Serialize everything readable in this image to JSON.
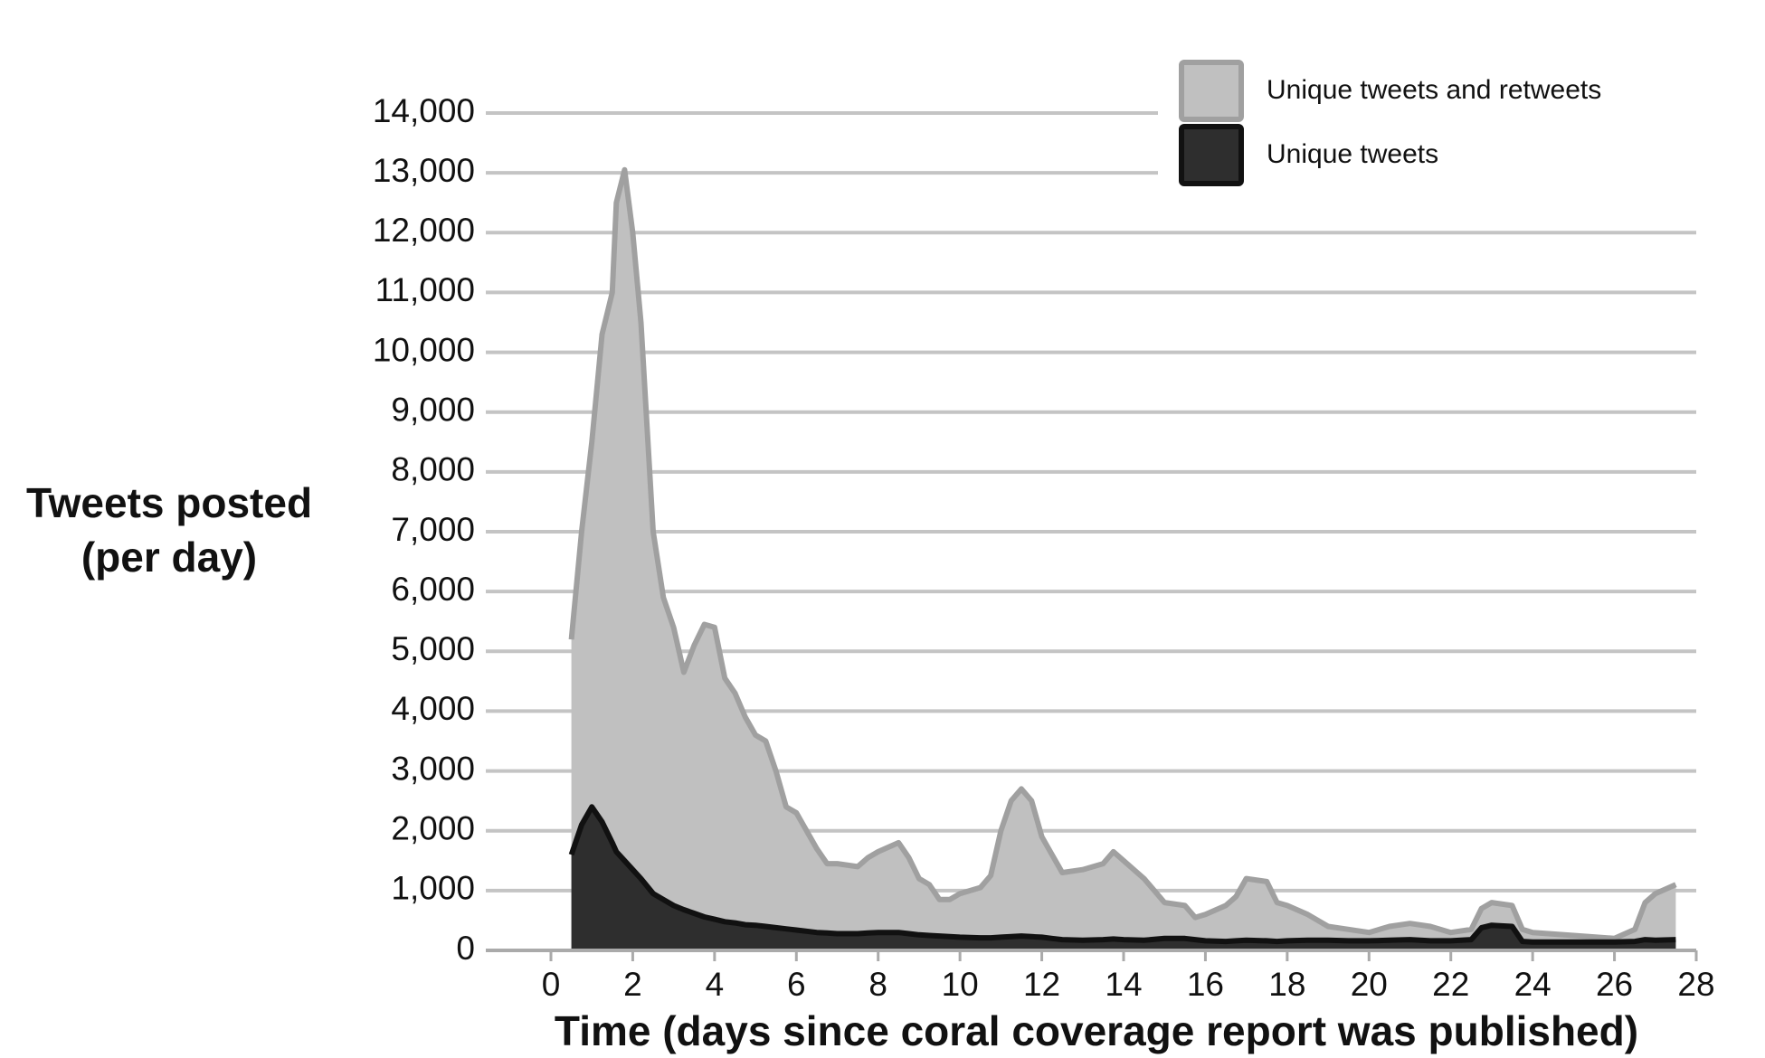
{
  "chart_data": {
    "type": "area",
    "y_label": [
      "Tweets posted",
      "(per day)"
    ],
    "x_label": "Time (days since coral coverage report was published)",
    "x": [
      0.5,
      0.75,
      1,
      1.25,
      1.5,
      1.6,
      1.8,
      2,
      2.2,
      2.5,
      2.75,
      3,
      3.25,
      3.5,
      3.75,
      4,
      4.25,
      4.5,
      4.75,
      5,
      5.25,
      5.5,
      5.75,
      6,
      6.25,
      6.5,
      6.75,
      7,
      7.5,
      7.75,
      8,
      8.5,
      8.75,
      9,
      9.25,
      9.5,
      9.75,
      10,
      10.5,
      10.75,
      11,
      11.25,
      11.5,
      11.75,
      12,
      12.25,
      12.5,
      13,
      13.5,
      13.75,
      14,
      14.5,
      15,
      15.5,
      15.75,
      16,
      16.5,
      16.75,
      17,
      17.5,
      17.75,
      18,
      18.5,
      19,
      19.5,
      20,
      20.5,
      21,
      21.5,
      22,
      22.5,
      22.75,
      23,
      23.5,
      23.75,
      24,
      25,
      26,
      26.5,
      26.75,
      27,
      27.5
    ],
    "series": [
      {
        "name": "Unique tweets and retweets",
        "color": "#c0c0c0",
        "line_color": "#a0a0a0",
        "values": [
          5200,
          7000,
          8500,
          10300,
          11000,
          12500,
          13050,
          12000,
          10500,
          7000,
          5900,
          5400,
          4650,
          5100,
          5450,
          5400,
          4550,
          4300,
          3900,
          3600,
          3500,
          3000,
          2400,
          2300,
          2000,
          1700,
          1450,
          1450,
          1400,
          1550,
          1650,
          1800,
          1550,
          1200,
          1100,
          850,
          850,
          950,
          1050,
          1250,
          2000,
          2500,
          2700,
          2500,
          1900,
          1600,
          1300,
          1350,
          1450,
          1650,
          1500,
          1200,
          800,
          750,
          550,
          600,
          750,
          900,
          1200,
          1150,
          800,
          750,
          600,
          400,
          350,
          300,
          400,
          450,
          400,
          300,
          350,
          700,
          800,
          750,
          350,
          300,
          250,
          200,
          350,
          800,
          950,
          1100
        ]
      },
      {
        "name": "Unique tweets",
        "color": "#2e2e2e",
        "line_color": "#111111",
        "values": [
          1600,
          2100,
          2400,
          2150,
          1800,
          1650,
          1500,
          1350,
          1200,
          950,
          850,
          750,
          680,
          620,
          560,
          520,
          480,
          460,
          430,
          420,
          400,
          380,
          360,
          340,
          320,
          300,
          290,
          280,
          280,
          290,
          300,
          300,
          280,
          260,
          250,
          240,
          230,
          220,
          210,
          210,
          220,
          230,
          240,
          230,
          220,
          200,
          180,
          170,
          180,
          190,
          180,
          170,
          200,
          200,
          180,
          160,
          150,
          160,
          170,
          160,
          150,
          160,
          170,
          170,
          160,
          160,
          170,
          180,
          160,
          160,
          180,
          380,
          420,
          400,
          150,
          140,
          140,
          140,
          150,
          180,
          170,
          180
        ]
      }
    ],
    "xlim": [
      0,
      28
    ],
    "xticks": [
      0,
      2,
      4,
      6,
      8,
      10,
      12,
      14,
      16,
      18,
      20,
      22,
      24,
      26,
      28
    ],
    "ylim": [
      0,
      14000
    ],
    "yticks": [
      0,
      {
        "value": 1000,
        "label": "1,000"
      },
      {
        "value": 2000,
        "label": "2,000"
      },
      {
        "value": 3000,
        "label": "3,000"
      },
      {
        "value": 4000,
        "label": "4,000"
      },
      {
        "value": 5000,
        "label": "5,000"
      },
      {
        "value": 6000,
        "label": "6,000"
      },
      {
        "value": 7000,
        "label": "7,000"
      },
      {
        "value": 8000,
        "label": "8,000"
      },
      {
        "value": 9000,
        "label": "9,000"
      },
      {
        "value": 10000,
        "label": "10,000"
      },
      {
        "value": 11000,
        "label": "11,000"
      },
      {
        "value": 12000,
        "label": "12,000"
      },
      {
        "value": 13000,
        "label": "13,000"
      },
      {
        "value": 14000,
        "label": "14,000"
      }
    ],
    "grid": true,
    "legend": "upper right"
  }
}
